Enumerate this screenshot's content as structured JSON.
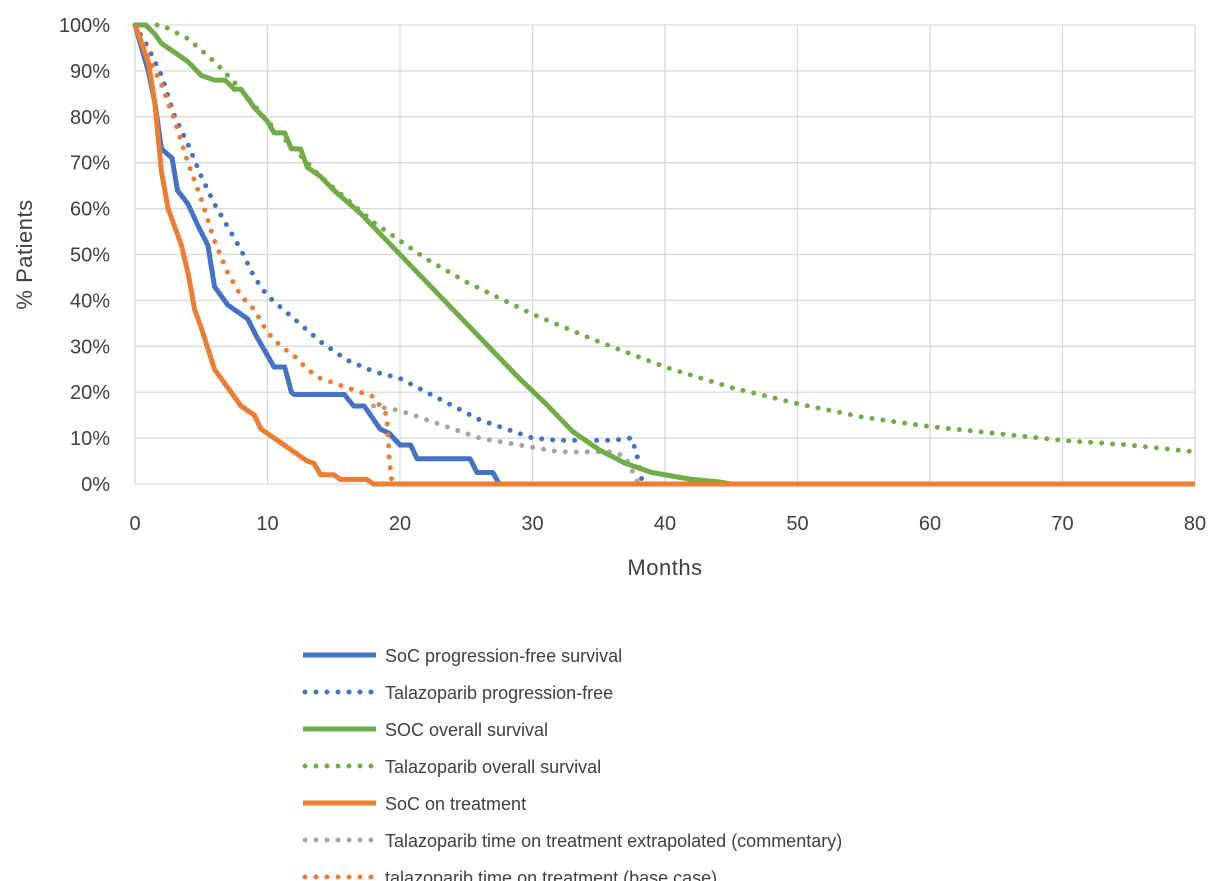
{
  "chart_data": {
    "type": "line",
    "title": "",
    "xlabel": "Months",
    "ylabel": "% Patients",
    "xlim": [
      0,
      80
    ],
    "ylim": [
      0,
      100
    ],
    "x_ticks": [
      "0",
      "10",
      "20",
      "30",
      "40",
      "50",
      "60",
      "70",
      "80"
    ],
    "y_ticks": [
      "0%",
      "10%",
      "20%",
      "30%",
      "40%",
      "50%",
      "60%",
      "70%",
      "80%",
      "90%",
      "100%"
    ],
    "grid": true,
    "legend_position": "bottom",
    "series": [
      {
        "name": "SoC progression-free survival",
        "color": "#4472C4",
        "dash": "solid",
        "points": [
          [
            0,
            100
          ],
          [
            1,
            90
          ],
          [
            1.5,
            83
          ],
          [
            2,
            73
          ],
          [
            2.8,
            71
          ],
          [
            3.2,
            64
          ],
          [
            4,
            61
          ],
          [
            4.8,
            56
          ],
          [
            5.5,
            52
          ],
          [
            6,
            43
          ],
          [
            7,
            39
          ],
          [
            8,
            37
          ],
          [
            8.5,
            36
          ],
          [
            9.2,
            32
          ],
          [
            10,
            28
          ],
          [
            10.5,
            25.5
          ],
          [
            11.3,
            25.5
          ],
          [
            11.8,
            20
          ],
          [
            12,
            19.5
          ],
          [
            15.8,
            19.5
          ],
          [
            16.5,
            17
          ],
          [
            17.3,
            17
          ],
          [
            18.5,
            12
          ],
          [
            19.2,
            11
          ],
          [
            20,
            8.5
          ],
          [
            20.8,
            8.5
          ],
          [
            21.3,
            5.5
          ],
          [
            25.3,
            5.5
          ],
          [
            25.8,
            2.5
          ],
          [
            27,
            2.5
          ],
          [
            27.5,
            0
          ],
          [
            80,
            0
          ]
        ]
      },
      {
        "name": "Talazoparib progression-free",
        "color": "#4472C4",
        "dash": "dotted",
        "points": [
          [
            0,
            100
          ],
          [
            1,
            95
          ],
          [
            2,
            89
          ],
          [
            3,
            80
          ],
          [
            4,
            74
          ],
          [
            5,
            67
          ],
          [
            6,
            61
          ],
          [
            7,
            56
          ],
          [
            8,
            51
          ],
          [
            9,
            45
          ],
          [
            10,
            41
          ],
          [
            12,
            36
          ],
          [
            14,
            31
          ],
          [
            16,
            27
          ],
          [
            18,
            24.5
          ],
          [
            20,
            23
          ],
          [
            22,
            20
          ],
          [
            24,
            17
          ],
          [
            26,
            14
          ],
          [
            28,
            12
          ],
          [
            30,
            10
          ],
          [
            32,
            9.5
          ],
          [
            36,
            9.5
          ],
          [
            37.5,
            10
          ],
          [
            38,
            5
          ],
          [
            38.3,
            0
          ],
          [
            80,
            0
          ]
        ]
      },
      {
        "name": "SOC overall survival",
        "color": "#70AD47",
        "dash": "solid",
        "points": [
          [
            0,
            100
          ],
          [
            0.8,
            100
          ],
          [
            1.5,
            98
          ],
          [
            2,
            96
          ],
          [
            3,
            94
          ],
          [
            4,
            92
          ],
          [
            5,
            89
          ],
          [
            6,
            88
          ],
          [
            6.8,
            88
          ],
          [
            7.5,
            86
          ],
          [
            8,
            86
          ],
          [
            9,
            82
          ],
          [
            10,
            79
          ],
          [
            10.5,
            76.5
          ],
          [
            11.3,
            76.5
          ],
          [
            11.8,
            73
          ],
          [
            12.5,
            73
          ],
          [
            13,
            69
          ],
          [
            14,
            67
          ],
          [
            15,
            64
          ],
          [
            17,
            59
          ],
          [
            19,
            53
          ],
          [
            21,
            47
          ],
          [
            23,
            41
          ],
          [
            25,
            35
          ],
          [
            27,
            29
          ],
          [
            29,
            23
          ],
          [
            31,
            17.5
          ],
          [
            33,
            11.5
          ],
          [
            35,
            7.5
          ],
          [
            37,
            4.5
          ],
          [
            39,
            2.5
          ],
          [
            41,
            1.5
          ],
          [
            42,
            1
          ],
          [
            44,
            0.5
          ],
          [
            45,
            0
          ],
          [
            80,
            0
          ]
        ]
      },
      {
        "name": "Talazoparib overall survival",
        "color": "#70AD47",
        "dash": "dotted",
        "points": [
          [
            0,
            100
          ],
          [
            2,
            100
          ],
          [
            4,
            97
          ],
          [
            6,
            92
          ],
          [
            8,
            86
          ],
          [
            10,
            79
          ],
          [
            12,
            73
          ],
          [
            14,
            67
          ],
          [
            16,
            62
          ],
          [
            18,
            57
          ],
          [
            20,
            53
          ],
          [
            22,
            49
          ],
          [
            25,
            44
          ],
          [
            30,
            37
          ],
          [
            35,
            31
          ],
          [
            40,
            25.5
          ],
          [
            45,
            21
          ],
          [
            50,
            17.5
          ],
          [
            55,
            14.5
          ],
          [
            60,
            12.5
          ],
          [
            65,
            11
          ],
          [
            70,
            9.5
          ],
          [
            75,
            8.5
          ],
          [
            80,
            7
          ]
        ]
      },
      {
        "name": "SoC on treatment",
        "color": "#ED7D31",
        "dash": "solid",
        "points": [
          [
            0,
            100
          ],
          [
            1,
            92
          ],
          [
            1.5,
            83
          ],
          [
            2,
            68
          ],
          [
            2.5,
            60
          ],
          [
            3,
            56
          ],
          [
            3.5,
            52
          ],
          [
            4,
            46
          ],
          [
            4.5,
            38
          ],
          [
            5,
            34
          ],
          [
            6,
            25
          ],
          [
            7,
            21
          ],
          [
            8,
            17
          ],
          [
            9,
            15
          ],
          [
            9.5,
            12
          ],
          [
            10,
            11
          ],
          [
            11,
            9
          ],
          [
            12,
            7
          ],
          [
            12.5,
            6
          ],
          [
            13,
            5
          ],
          [
            13.5,
            4.5
          ],
          [
            14,
            2
          ],
          [
            15,
            2
          ],
          [
            15.5,
            1
          ],
          [
            17.5,
            1
          ],
          [
            18,
            0
          ],
          [
            80,
            0
          ]
        ]
      },
      {
        "name": "Talazoparib time on treatment extrapolated (commentary)",
        "color": "#A5A5A5",
        "dash": "dotted",
        "points": [
          [
            18,
            17
          ],
          [
            20,
            16
          ],
          [
            22,
            14
          ],
          [
            24,
            12
          ],
          [
            26,
            10
          ],
          [
            28,
            9
          ],
          [
            30,
            8
          ],
          [
            32,
            7
          ],
          [
            34,
            7
          ],
          [
            36,
            7
          ],
          [
            37,
            6
          ],
          [
            38,
            0
          ]
        ]
      },
      {
        "name": "talazoparib time on treatment (base case)",
        "color": "#ED7D31",
        "dash": "dotted",
        "points": [
          [
            0,
            100
          ],
          [
            1,
            93
          ],
          [
            2,
            87
          ],
          [
            3,
            79
          ],
          [
            4,
            70
          ],
          [
            5,
            62
          ],
          [
            6,
            53
          ],
          [
            7,
            46
          ],
          [
            8,
            41
          ],
          [
            9,
            38
          ],
          [
            10,
            33
          ],
          [
            11,
            30
          ],
          [
            12,
            28
          ],
          [
            13,
            25
          ],
          [
            14,
            23
          ],
          [
            15,
            22
          ],
          [
            16,
            21
          ],
          [
            17,
            20
          ],
          [
            18,
            19
          ],
          [
            19,
            15
          ],
          [
            19.2,
            5
          ],
          [
            19.4,
            0
          ]
        ]
      }
    ]
  }
}
